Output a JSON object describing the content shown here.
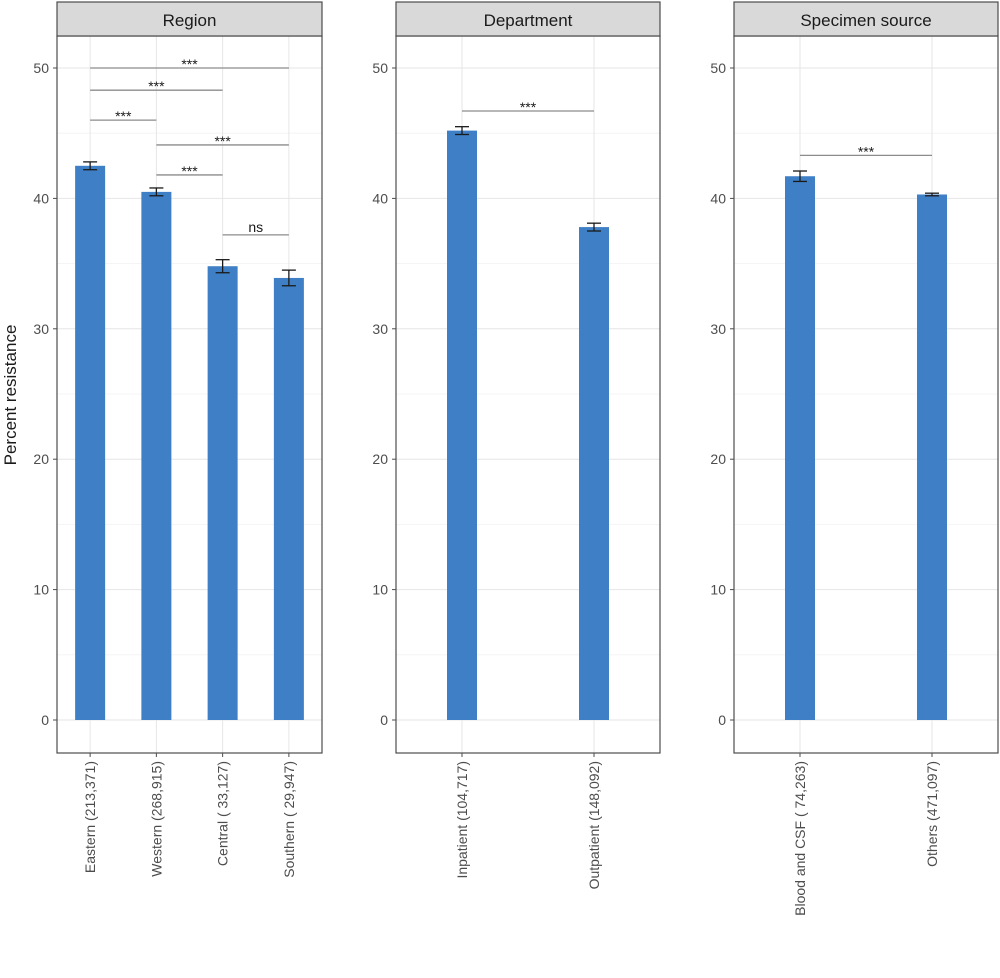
{
  "chart_data": {
    "type": "bar",
    "ylabel": "Percent resistance",
    "ylim": [
      0,
      52
    ],
    "yticks": [
      0,
      10,
      20,
      30,
      40,
      50
    ],
    "bar_color": "#3f7fc5",
    "panels": [
      {
        "title": "Region",
        "categories": [
          "Eastern (213,371)",
          "Western (268,915)",
          "Central ( 33,127)",
          "Southern ( 29,947)"
        ],
        "values": [
          42.5,
          40.5,
          34.8,
          33.9
        ],
        "errors": [
          0.3,
          0.3,
          0.5,
          0.6
        ],
        "comparisons": [
          {
            "from": 0,
            "to": 3,
            "y": 50.0,
            "label": "***"
          },
          {
            "from": 0,
            "to": 2,
            "y": 48.3,
            "label": "***"
          },
          {
            "from": 0,
            "to": 1,
            "y": 46.0,
            "label": "***"
          },
          {
            "from": 1,
            "to": 3,
            "y": 44.1,
            "label": "***"
          },
          {
            "from": 1,
            "to": 2,
            "y": 41.8,
            "label": "***"
          },
          {
            "from": 2,
            "to": 3,
            "y": 37.2,
            "label": "ns"
          }
        ]
      },
      {
        "title": "Department",
        "categories": [
          "Inpatient (104,717)",
          "Outpatient (148,092)"
        ],
        "values": [
          45.2,
          37.8
        ],
        "errors": [
          0.3,
          0.3
        ],
        "comparisons": [
          {
            "from": 0,
            "to": 1,
            "y": 46.7,
            "label": "***"
          }
        ]
      },
      {
        "title": "Specimen source",
        "categories": [
          "Blood and CSF ( 74,263)",
          "Others (471,097)"
        ],
        "values": [
          41.7,
          40.3
        ],
        "errors": [
          0.4,
          0.1
        ],
        "comparisons": [
          {
            "from": 0,
            "to": 1,
            "y": 43.3,
            "label": "***"
          }
        ]
      }
    ]
  }
}
